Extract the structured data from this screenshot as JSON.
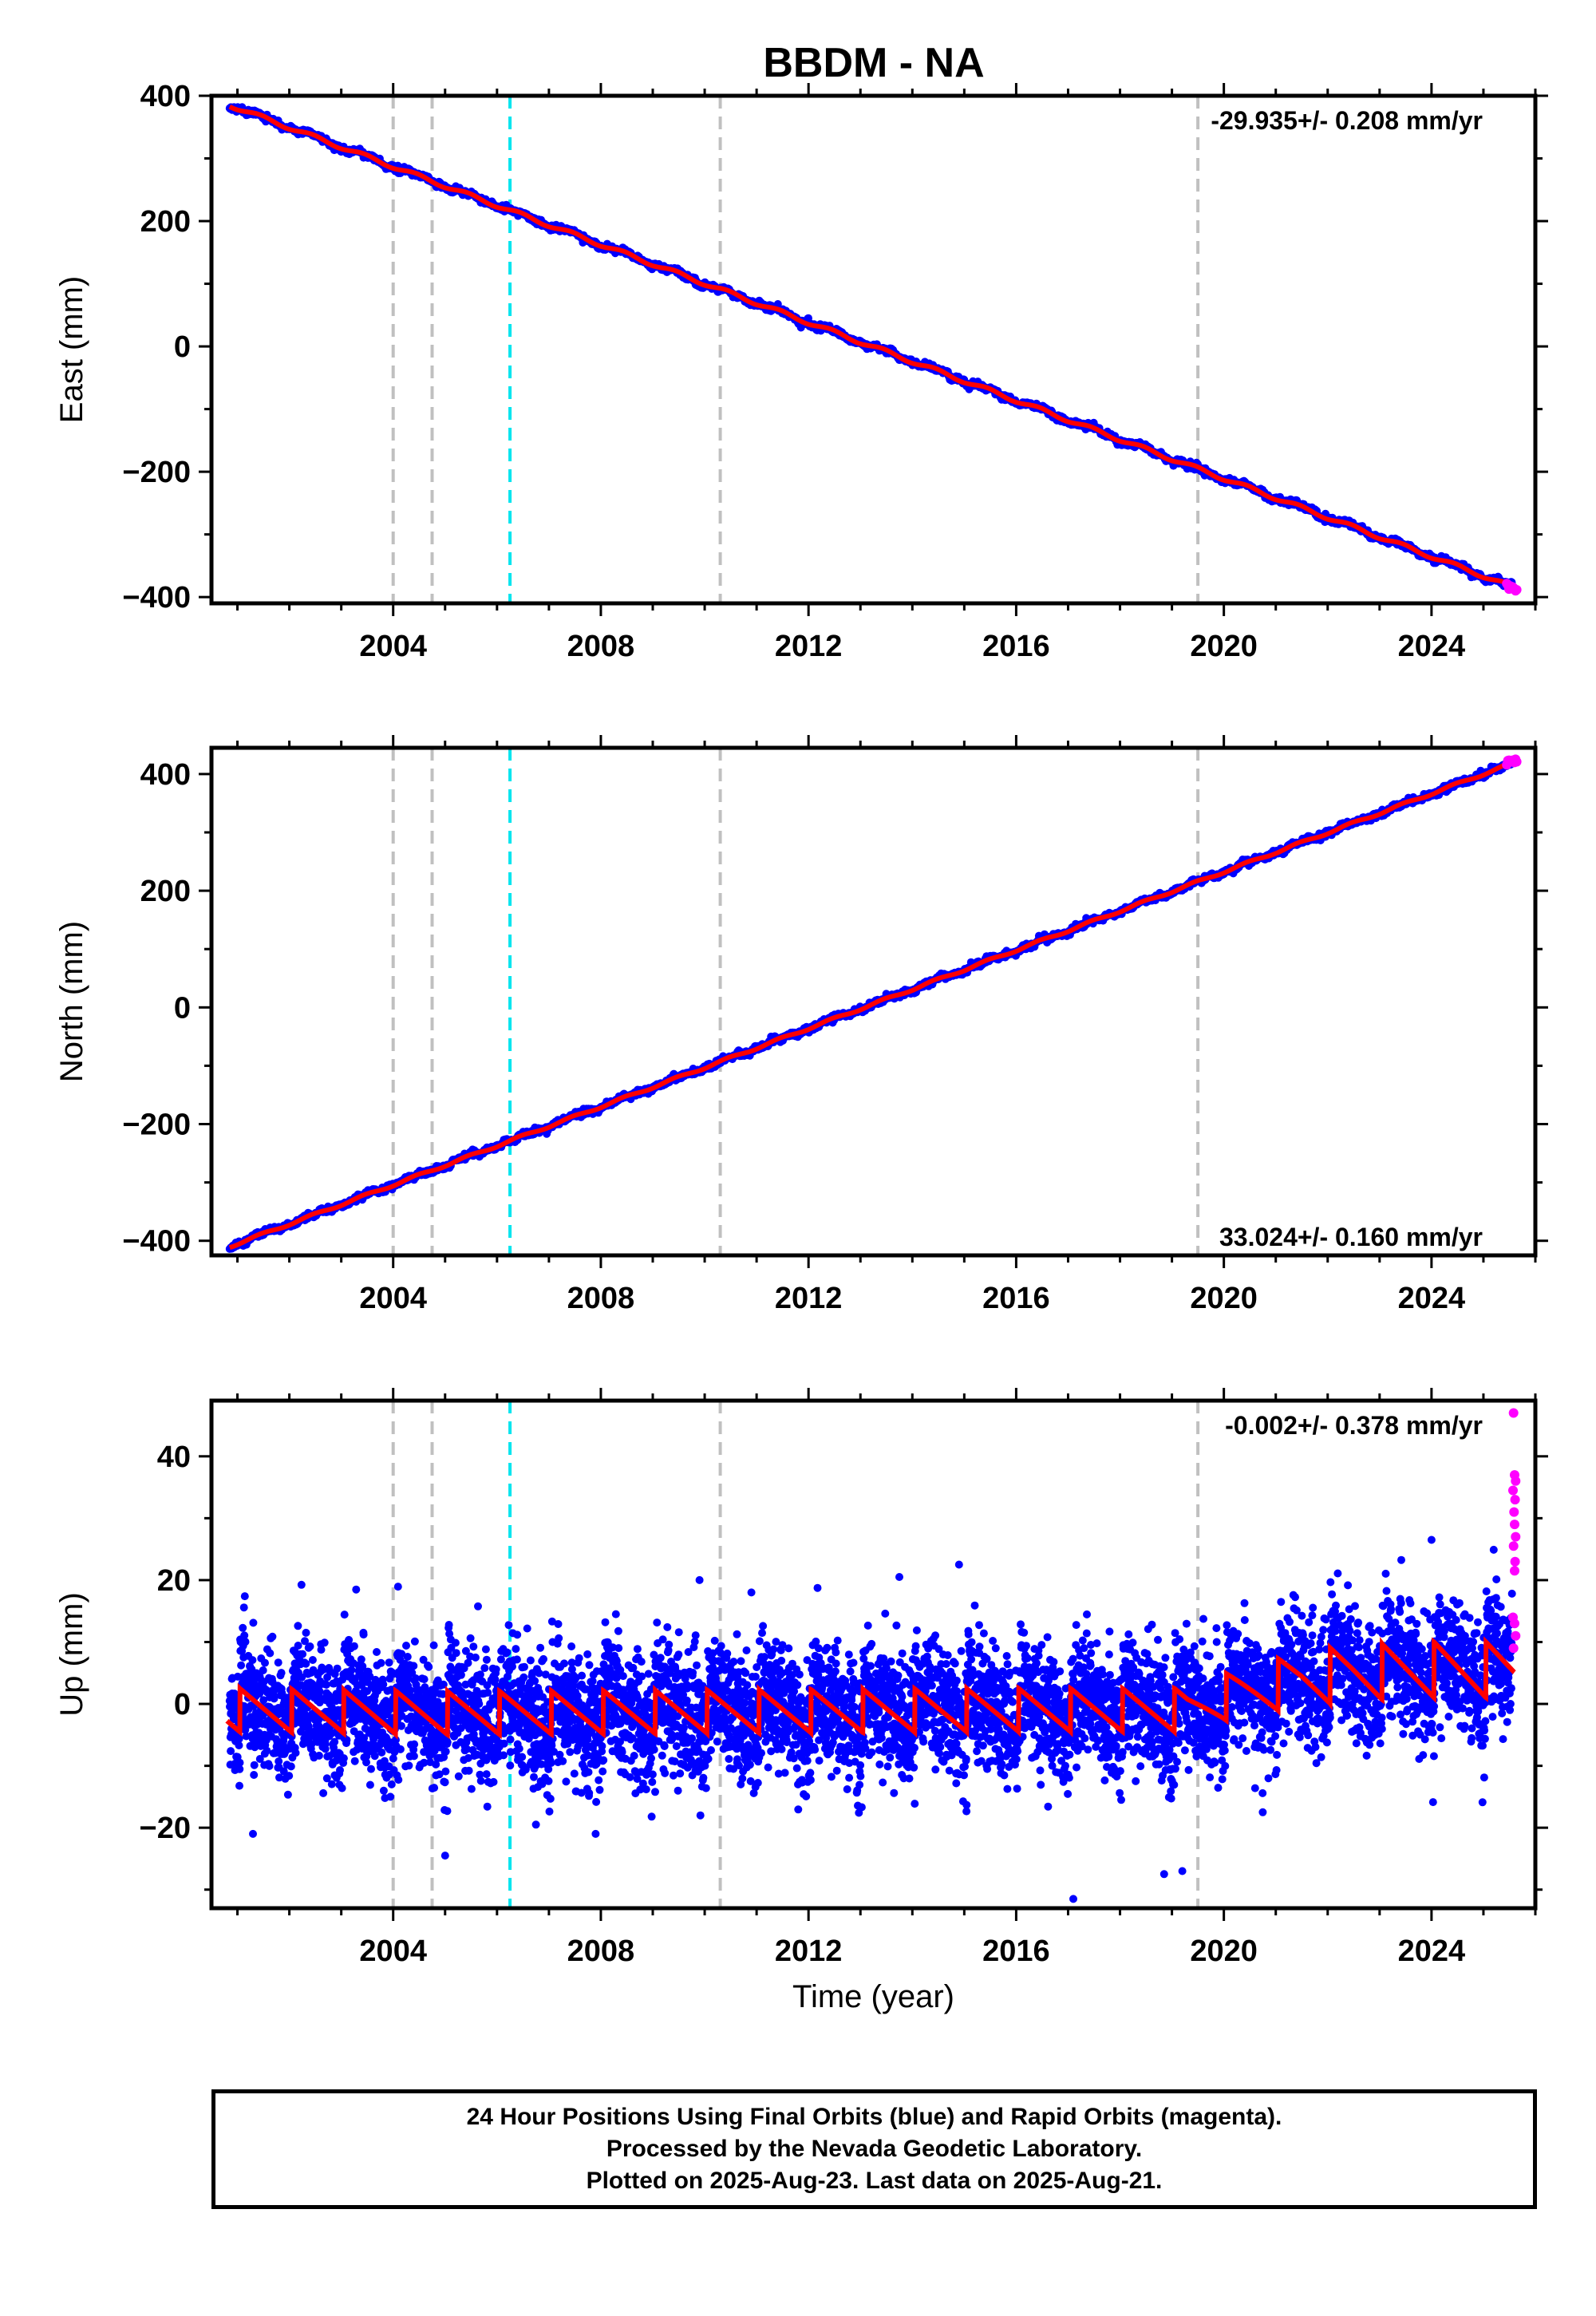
{
  "page_title": "BBDM - NA",
  "footer": {
    "line1": "24 Hour Positions Using Final Orbits (blue) and Rapid Orbits (magenta).",
    "line2": "Processed by the Nevada Geodetic Laboratory.",
    "line3": "Plotted on 2025-Aug-23. Last data on 2025-Aug-21."
  },
  "colors": {
    "final_orbits": "#0000ff",
    "rapid_orbits": "#ff00ff",
    "model_fit": "#ff0000",
    "equipment_change_line": "#c0c0c0",
    "event_line": "#00e5ee"
  },
  "chart_data": [
    {
      "type": "scatter",
      "title": "BBDM - NA",
      "xlabel": "",
      "ylabel": "East (mm)",
      "xlim": [
        2000.5,
        2026.0
      ],
      "ylim": [
        -410,
        400
      ],
      "x_ticks": [
        2004,
        2008,
        2012,
        2016,
        2020,
        2024
      ],
      "y_ticks": [
        400,
        200,
        0,
        -200,
        -400
      ],
      "y_tick_labels": [
        "400",
        "200",
        "0",
        "−200",
        "−400"
      ],
      "rate_label": "-29.935+/- 0.208 mm/yr",
      "rate_position": "top-right",
      "trend": {
        "start": [
          2000.85,
          385
        ],
        "end": [
          2025.6,
          -385
        ],
        "rate_mm_per_yr": -29.935
      },
      "seasonal_amplitude_mm": 3,
      "series": [
        {
          "name": "Final Orbits",
          "color": "#0000ff",
          "x_range": [
            2000.85,
            2025.55
          ]
        },
        {
          "name": "Rapid Orbits",
          "color": "#ff00ff",
          "x_range": [
            2025.45,
            2025.64
          ]
        }
      ],
      "vlines_gray": [
        2004.0,
        2004.75,
        2010.3,
        2019.5
      ],
      "vlines_cyan": [
        2006.25
      ],
      "grid": false
    },
    {
      "type": "scatter",
      "xlabel": "",
      "ylabel": "North (mm)",
      "xlim": [
        2000.5,
        2026.0
      ],
      "ylim": [
        -425,
        445
      ],
      "x_ticks": [
        2004,
        2008,
        2012,
        2016,
        2020,
        2024
      ],
      "y_ticks": [
        400,
        200,
        0,
        -200,
        -400
      ],
      "y_tick_labels": [
        "400",
        "200",
        "0",
        "−200",
        "−400"
      ],
      "rate_label": "33.024+/- 0.160 mm/yr",
      "rate_position": "bottom-right",
      "trend": {
        "start": [
          2000.85,
          -410
        ],
        "end": [
          2025.6,
          420
        ],
        "rate_mm_per_yr": 33.024
      },
      "seasonal_amplitude_mm": 2,
      "series": [
        {
          "name": "Final Orbits",
          "color": "#0000ff",
          "x_range": [
            2000.85,
            2025.55
          ]
        },
        {
          "name": "Rapid Orbits",
          "color": "#ff00ff",
          "x_range": [
            2025.45,
            2025.64
          ]
        }
      ],
      "vlines_gray": [
        2004.0,
        2004.75,
        2010.3,
        2019.5
      ],
      "vlines_cyan": [
        2006.25
      ],
      "grid": false
    },
    {
      "type": "scatter",
      "xlabel": "Time (year)",
      "ylabel": "Up (mm)",
      "xlim": [
        2000.5,
        2026.0
      ],
      "ylim": [
        -33,
        49
      ],
      "x_ticks": [
        2004,
        2008,
        2012,
        2016,
        2020,
        2024
      ],
      "y_ticks": [
        40,
        20,
        0,
        -20
      ],
      "y_tick_labels": [
        "40",
        "20",
        "0",
        "−20"
      ],
      "rate_label": "-0.002+/- 0.378 mm/yr",
      "rate_position": "top-right",
      "scatter_sd_mm": 5,
      "model_mean": [
        [
          2000.8,
          -1
        ],
        [
          2005.0,
          -1.5
        ],
        [
          2016.0,
          -1
        ],
        [
          2019.3,
          -1
        ],
        [
          2020.0,
          1
        ],
        [
          2020.5,
          2
        ],
        [
          2021.5,
          4
        ],
        [
          2022.5,
          5
        ],
        [
          2024.0,
          5.5
        ],
        [
          2025.6,
          5.5
        ]
      ],
      "model_amplitude": [
        [
          2000.8,
          3.5
        ],
        [
          2019.5,
          3.5
        ],
        [
          2020.5,
          4
        ],
        [
          2022.0,
          4.5
        ],
        [
          2025.6,
          4.5
        ]
      ],
      "series": [
        {
          "name": "Final Orbits",
          "color": "#0000ff",
          "x_range": [
            2000.85,
            2025.55
          ]
        },
        {
          "name": "Rapid Orbits",
          "color": "#ff00ff",
          "x_range": [
            2025.45,
            2025.64
          ]
        }
      ],
      "rapid_orbit_points": [
        [
          2025.58,
          47
        ],
        [
          2025.6,
          37
        ],
        [
          2025.62,
          36
        ],
        [
          2025.57,
          34.5
        ],
        [
          2025.61,
          33
        ],
        [
          2025.59,
          31
        ],
        [
          2025.6,
          29
        ],
        [
          2025.62,
          27
        ],
        [
          2025.58,
          25.5
        ],
        [
          2025.61,
          23
        ],
        [
          2025.6,
          21.5
        ],
        [
          2025.57,
          14
        ],
        [
          2025.6,
          13
        ],
        [
          2025.62,
          11
        ],
        [
          2025.58,
          9
        ]
      ],
      "outlier_points": [
        [
          2001.3,
          -21
        ],
        [
          2005.0,
          -24.5
        ],
        [
          2006.75,
          -19.5
        ],
        [
          2007.9,
          -21
        ],
        [
          2009.9,
          20
        ],
        [
          2010.9,
          18
        ],
        [
          2013.75,
          20.5
        ],
        [
          2014.9,
          22.5
        ],
        [
          2017.1,
          -31.5
        ],
        [
          2018.85,
          -27.5
        ],
        [
          2019.2,
          -27
        ],
        [
          2020.75,
          -17.5
        ],
        [
          2024.0,
          26.5
        ]
      ],
      "vlines_gray": [
        2004.0,
        2004.75,
        2010.3,
        2019.5
      ],
      "vlines_cyan": [
        2006.25
      ],
      "grid": false
    }
  ]
}
